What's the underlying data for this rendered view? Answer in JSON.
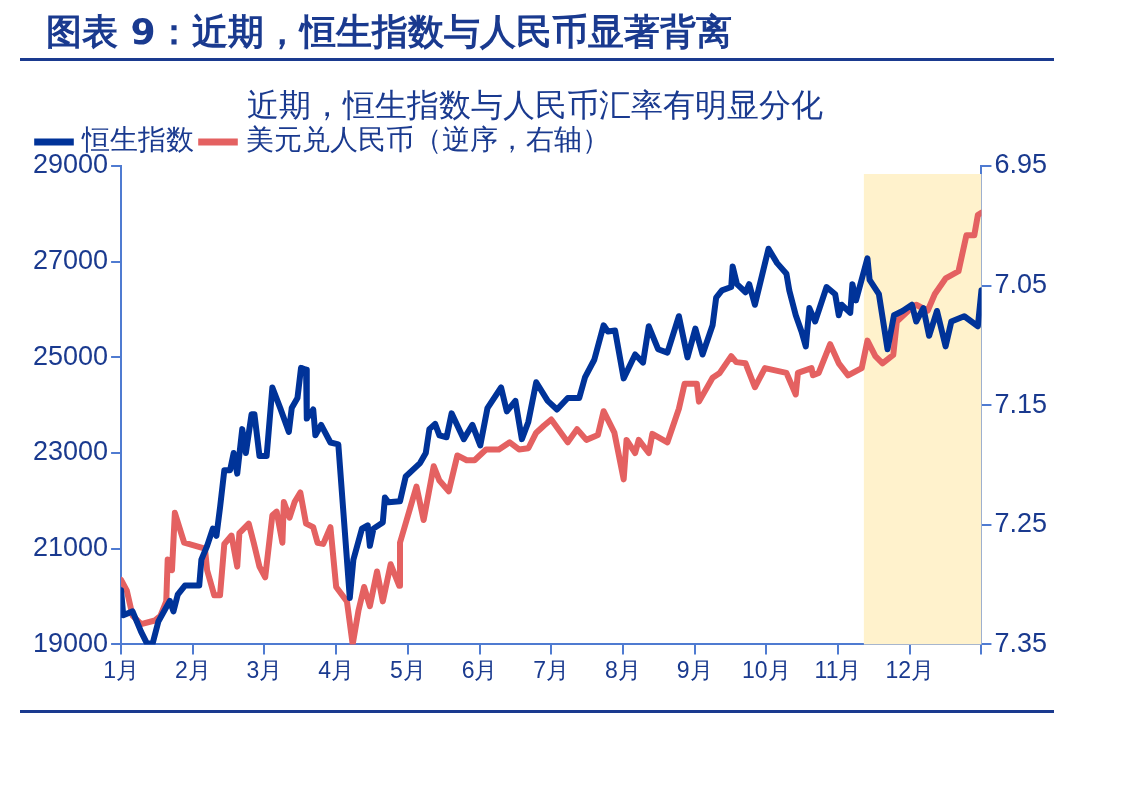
{
  "chart_data": {
    "type": "line",
    "title": "图表 9：近期，恒生指数与人民币显著背离",
    "subtitle": "近期，恒生指数与人民币汇率有明显分化",
    "xlim": [
      1,
      13
    ],
    "xticks": [
      {
        "value": 1,
        "label": "1月"
      },
      {
        "value": 2,
        "label": "2月"
      },
      {
        "value": 3,
        "label": "3月"
      },
      {
        "value": 4,
        "label": "4月"
      },
      {
        "value": 5,
        "label": "5月"
      },
      {
        "value": 6,
        "label": "6月"
      },
      {
        "value": 7,
        "label": "7月"
      },
      {
        "value": 8,
        "label": "8月"
      },
      {
        "value": 9,
        "label": "9月"
      },
      {
        "value": 10,
        "label": "10月"
      },
      {
        "value": 11,
        "label": "11月"
      },
      {
        "value": 12,
        "label": "12月"
      },
      {
        "value": 13,
        "label": null
      }
    ],
    "ylim": [
      19000,
      29000
    ],
    "yticks": [
      19000,
      21000,
      23000,
      25000,
      27000,
      29000
    ],
    "y2lim": [
      7.35,
      6.95
    ],
    "y2ticks": [
      6.95,
      7.05,
      7.15,
      7.25,
      7.35
    ],
    "legend": "top",
    "grid": false,
    "marker": "none",
    "bands": [
      {
        "axis": "x",
        "from": 11.36,
        "to": 13,
        "color": "#fff2cc"
      }
    ],
    "series": [
      {
        "name": "恒生指数",
        "color": "#003399",
        "x": [
          1.0,
          1.03,
          1.16,
          1.28,
          1.36,
          1.44,
          1.52,
          1.68,
          1.73,
          1.79,
          1.89,
          2.09,
          2.12,
          2.2,
          2.28,
          2.33,
          2.38,
          2.44,
          2.52,
          2.57,
          2.62,
          2.69,
          2.74,
          2.82,
          2.86,
          2.93,
          3.03,
          3.11,
          3.22,
          3.34,
          3.38,
          3.46,
          3.51,
          3.58,
          3.59,
          3.68,
          3.71,
          3.79,
          3.92,
          4.03,
          4.19,
          4.24,
          4.36,
          4.44,
          4.47,
          4.52,
          4.65,
          4.68,
          4.73,
          4.89,
          4.97,
          5.17,
          5.25,
          5.3,
          5.38,
          5.44,
          5.54,
          5.61,
          5.78,
          5.9,
          6.01,
          6.11,
          6.3,
          6.38,
          6.5,
          6.59,
          6.68,
          6.79,
          6.95,
          7.08,
          7.23,
          7.39,
          7.47,
          7.6,
          7.73,
          7.79,
          7.89,
          8.01,
          8.17,
          8.28,
          8.36,
          8.49,
          8.62,
          8.78,
          8.9,
          9.01,
          9.11,
          9.25,
          9.3,
          9.38,
          9.51,
          9.53,
          9.59,
          9.71,
          9.76,
          9.84,
          10.03,
          10.15,
          10.28,
          10.32,
          10.41,
          10.49,
          10.55,
          10.6,
          10.68,
          10.84,
          10.96,
          11.01,
          11.05,
          11.17,
          11.2,
          11.25,
          11.41,
          11.44,
          11.57,
          11.69,
          11.78,
          11.9,
          12.03,
          12.09,
          12.19,
          12.27,
          12.38,
          12.5,
          12.58,
          12.76,
          12.95,
          13.0
        ],
        "values": [
          20130,
          19610,
          19690,
          19260,
          19020,
          19020,
          19480,
          19910,
          19690,
          20040,
          20230,
          20230,
          20770,
          21060,
          21420,
          21270,
          21860,
          22640,
          22640,
          23000,
          22570,
          23500,
          23000,
          23810,
          23810,
          22940,
          22940,
          24370,
          23940,
          23440,
          23940,
          24150,
          24780,
          24740,
          23720,
          23910,
          23370,
          23590,
          23220,
          23180,
          19970,
          20770,
          21420,
          21490,
          21060,
          21420,
          21550,
          22070,
          21970,
          21990,
          22510,
          22790,
          23000,
          23500,
          23610,
          23370,
          23330,
          23830,
          23290,
          23590,
          23160,
          23940,
          24370,
          23870,
          24090,
          23290,
          23650,
          24480,
          24090,
          23910,
          24150,
          24150,
          24580,
          24950,
          25670,
          25540,
          25560,
          24560,
          25060,
          24890,
          25650,
          25170,
          25100,
          25860,
          25000,
          25600,
          25060,
          25670,
          26250,
          26400,
          26470,
          26900,
          26530,
          26360,
          26530,
          26100,
          27270,
          26970,
          26750,
          26400,
          25880,
          25540,
          25230,
          26030,
          25750,
          26470,
          26320,
          25880,
          26100,
          25930,
          26530,
          26190,
          27070,
          26620,
          26320,
          25170,
          25880,
          25970,
          26100,
          25750,
          26030,
          25450,
          25970,
          25230,
          25750,
          25860,
          25650,
          26400
        ]
      },
      {
        "name": "美元兑人民币（逆序，右轴）",
        "color": "#e46161",
        "axis": "y2",
        "x": [
          1.0,
          1.08,
          1.16,
          1.28,
          1.47,
          1.55,
          1.63,
          1.65,
          1.71,
          1.75,
          1.88,
          2.17,
          2.2,
          2.3,
          2.38,
          2.44,
          2.54,
          2.62,
          2.65,
          2.78,
          2.85,
          2.93,
          3.01,
          3.11,
          3.17,
          3.25,
          3.27,
          3.35,
          3.42,
          3.5,
          3.58,
          3.68,
          3.74,
          3.82,
          3.92,
          4.0,
          4.15,
          4.23,
          4.31,
          4.39,
          4.47,
          4.57,
          4.65,
          4.76,
          4.88,
          4.89,
          5.12,
          5.22,
          5.36,
          5.44,
          5.57,
          5.69,
          5.82,
          5.93,
          6.09,
          6.27,
          6.42,
          6.55,
          6.68,
          6.79,
          6.9,
          7.0,
          7.23,
          7.36,
          7.49,
          7.65,
          7.73,
          7.88,
          8.01,
          8.05,
          8.17,
          8.22,
          8.36,
          8.41,
          8.62,
          8.7,
          8.78,
          8.86,
          9.03,
          9.06,
          9.25,
          9.35,
          9.51,
          9.58,
          9.71,
          9.84,
          9.98,
          10.28,
          10.41,
          10.44,
          10.63,
          10.65,
          10.73,
          10.89,
          11.01,
          11.14,
          11.33,
          11.41,
          11.52,
          11.62,
          11.77,
          11.82,
          11.98,
          12.09,
          12.25,
          12.35,
          12.5,
          12.68,
          12.79,
          12.9,
          12.95,
          13.0
        ],
        "values": [
          7.296,
          7.305,
          7.326,
          7.333,
          7.33,
          7.326,
          7.314,
          7.279,
          7.288,
          7.24,
          7.265,
          7.27,
          7.288,
          7.309,
          7.309,
          7.266,
          7.259,
          7.285,
          7.257,
          7.249,
          7.265,
          7.285,
          7.294,
          7.242,
          7.239,
          7.265,
          7.231,
          7.244,
          7.231,
          7.223,
          7.249,
          7.252,
          7.265,
          7.266,
          7.252,
          7.302,
          7.314,
          7.35,
          7.322,
          7.302,
          7.318,
          7.289,
          7.314,
          7.283,
          7.301,
          7.265,
          7.218,
          7.246,
          7.201,
          7.213,
          7.222,
          7.192,
          7.196,
          7.196,
          7.187,
          7.187,
          7.181,
          7.187,
          7.186,
          7.173,
          7.167,
          7.162,
          7.181,
          7.17,
          7.179,
          7.175,
          7.155,
          7.173,
          7.212,
          7.179,
          7.19,
          7.179,
          7.19,
          7.174,
          7.181,
          7.167,
          7.153,
          7.132,
          7.132,
          7.147,
          7.127,
          7.123,
          7.109,
          7.114,
          7.115,
          7.135,
          7.119,
          7.123,
          7.141,
          7.123,
          7.119,
          7.125,
          7.123,
          7.099,
          7.115,
          7.125,
          7.119,
          7.096,
          7.109,
          7.115,
          7.108,
          7.08,
          7.071,
          7.066,
          7.071,
          7.057,
          7.044,
          7.038,
          7.008,
          7.008,
          6.991,
          6.989
        ]
      }
    ]
  }
}
